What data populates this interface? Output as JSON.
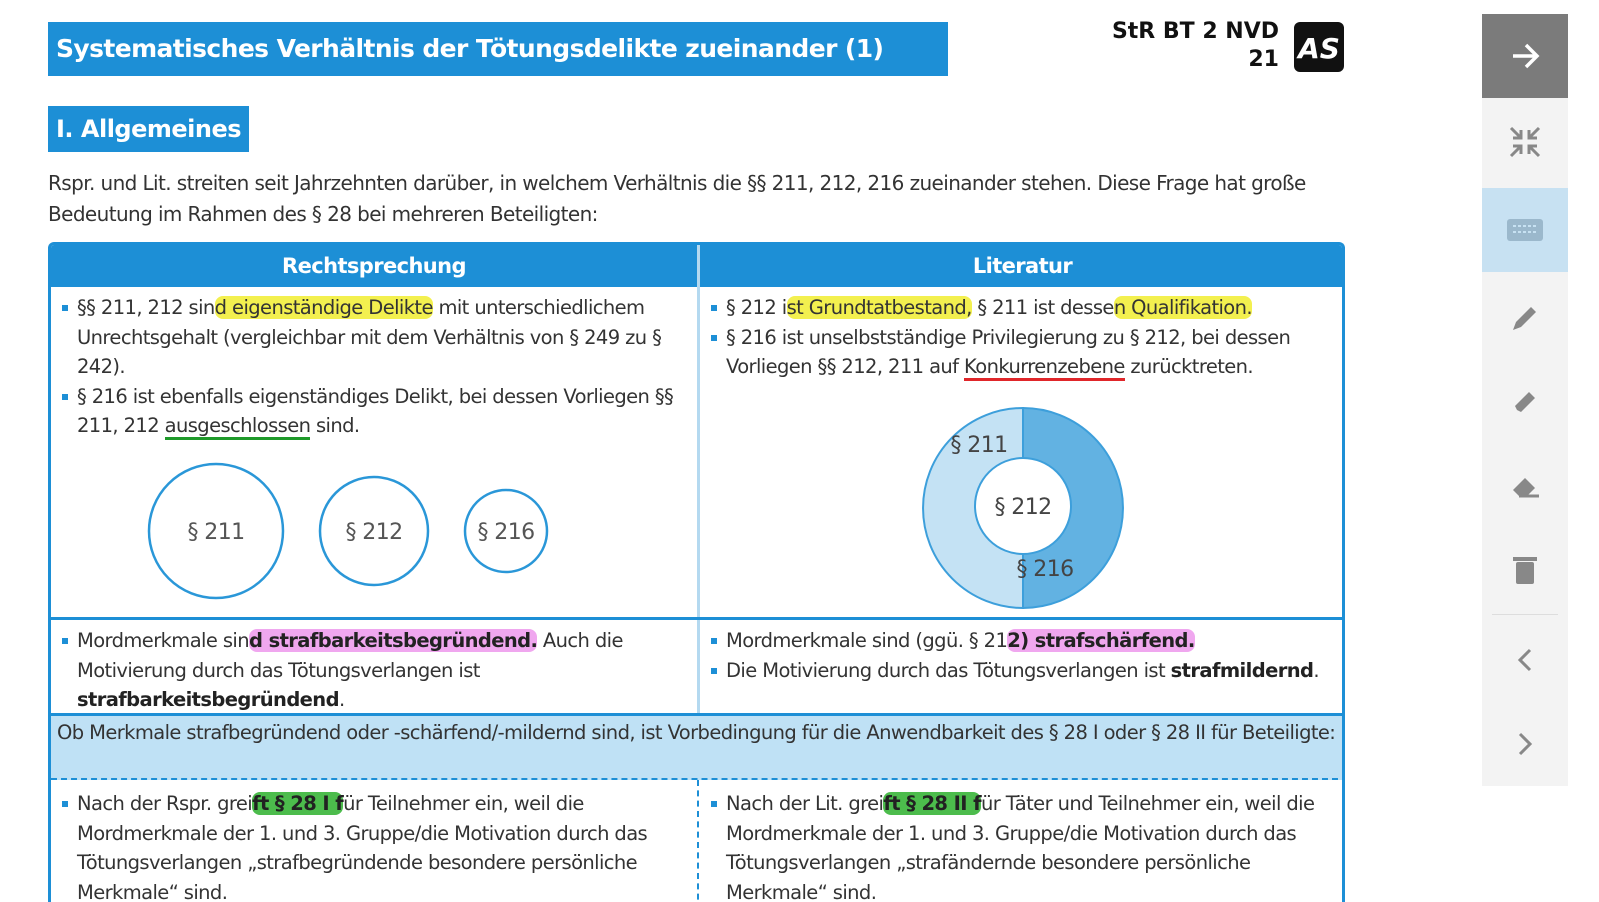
{
  "header": {
    "title": "Systematisches Verhältnis der Tötungsdelikte zueinander (1)",
    "code": "StR BT 2 NVD",
    "page": "21",
    "logo": "AS"
  },
  "section": {
    "title": "I. Allgemeines",
    "intro": "Rspr. und Lit. streiten seit Jahrzehnten darüber, in welchem Verhältnis die §§ 211, 212, 216 zueinander stehen. Diese Frage hat große Bedeutung im Rahmen des § 28 bei mehreren Beteiligten:"
  },
  "table": {
    "headers": [
      "Rechtsprechung",
      "Literatur"
    ],
    "row1": {
      "left": [
        [
          "§§ 211, 212 sin",
          "d eigenständige Delikte",
          " mit unterschiedlichem Unrechtsgehalt (vergleichbar mit dem Verhältnis von § 249 zu § 242)."
        ],
        [
          "§ 216 ist ebenfalls eigenständiges Delikt, bei dessen Vorliegen §§ 211, 212 ",
          "ausgeschlossen",
          " sind."
        ]
      ],
      "right": [
        [
          "§ 212 i",
          "st Grundtatbestand,",
          " § 211 ist desse",
          "n Qualifikation."
        ],
        [
          "§ 216 ist unselbstständige Privilegierung zu § 212, bei dessen Vorliegen §§ 212, 211 auf ",
          "Konkurrenzebene",
          " zurücktreten."
        ]
      ],
      "circles": [
        "§ 211",
        "§ 212",
        "§ 216"
      ],
      "donut": [
        "§ 211",
        "§ 212",
        "§ 216"
      ]
    },
    "row2": {
      "left": [
        [
          "Mordmerkmale sin",
          "d strafbarkeitsbegründend.",
          " Auch die Motivierung durch das Tötungsverlangen ist ",
          "strafbarkeitsbegründend",
          "."
        ]
      ],
      "right": [
        [
          "Mordmerkmale sind (ggü. § 21",
          "2) strafschärfend."
        ],
        [
          "Die Motivierung durch das Tötungsverlangen ist ",
          "strafmildernd",
          "."
        ]
      ]
    },
    "note": "Ob Merkmale strafbegründend oder -schärfend/-mildernd sind, ist Vorbedingung für die Anwendbarkeit des § 28 I oder § 28 II für Beteiligte:",
    "row3": {
      "left": [
        [
          "Nach der Rspr. grei",
          "ft § 28 I f",
          "ür Teilnehmer ein, weil die Mordmerkmale der 1. und 3. Gruppe/die Motivation durch das Tötungsverlangen „strafbegründende besondere persönliche Merkmale“ sind."
        ]
      ],
      "right": [
        [
          "Nach der Lit. grei",
          "ft § 28 II f",
          "ür Täter und Teilnehmer ein, weil die Mordmerkmale der 1. und 3. Gruppe/die Motivation durch das Tötungsverlangen „strafändernde besondere persönliche Merkmale“ sind."
        ]
      ]
    }
  }
}
